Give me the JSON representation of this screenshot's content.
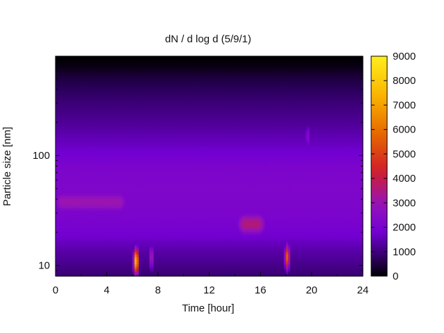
{
  "chart_data": {
    "type": "heatmap",
    "title": "dN / d log d (5/9/1)",
    "xlabel": "Time [hour]",
    "ylabel": "Particle size [nm]",
    "xlim": [
      0,
      24
    ],
    "ylim": [
      8,
      800
    ],
    "y_scale": "log",
    "x_ticks": [
      0,
      4,
      8,
      12,
      16,
      20,
      24
    ],
    "x_tick_labels": [
      "0",
      "4",
      "8",
      "12",
      "16",
      "20",
      "24"
    ],
    "y_ticks": [
      10,
      100
    ],
    "y_tick_labels": [
      "10",
      "100"
    ],
    "colorbar": {
      "range": [
        0,
        9000
      ],
      "ticks": [
        0,
        1000,
        2000,
        3000,
        4000,
        5000,
        6000,
        7000,
        8000,
        9000
      ],
      "tick_labels": [
        "0",
        "1000",
        "2000",
        "3000",
        "4000",
        "5000",
        "6000",
        "7000",
        "8000",
        "9000"
      ],
      "colormap": "black-purple-red-orange-yellow"
    },
    "background_profile": {
      "sizes_nm": [
        8,
        10,
        15,
        20,
        30,
        50,
        80,
        100,
        150,
        200,
        300,
        500,
        650,
        800
      ],
      "values": [
        900,
        1100,
        1500,
        1900,
        2100,
        2200,
        2100,
        1850,
        1500,
        1250,
        950,
        500,
        150,
        0
      ]
    },
    "features": [
      {
        "label": "mode 30-40 nm",
        "time_h": [
          0.5,
          5
        ],
        "size_nm": 38,
        "value": 3100
      },
      {
        "label": "burst ~6.3 h",
        "time_h": 6.3,
        "size_nm": 11,
        "value": 7600
      },
      {
        "label": "burst ~7.5 h",
        "time_h": 7.5,
        "size_nm": 12,
        "value": 3300
      },
      {
        "label": "mode 15-16 h",
        "time_h": [
          14.8,
          15.8
        ],
        "size_nm": 24,
        "value": 3600
      },
      {
        "label": "burst ~18.1 h",
        "time_h": 18.1,
        "size_nm": 12,
        "value": 5600
      },
      {
        "label": "plume ~19.7 h",
        "time_h": 19.7,
        "size_nm": 150,
        "value": 2500
      }
    ]
  }
}
